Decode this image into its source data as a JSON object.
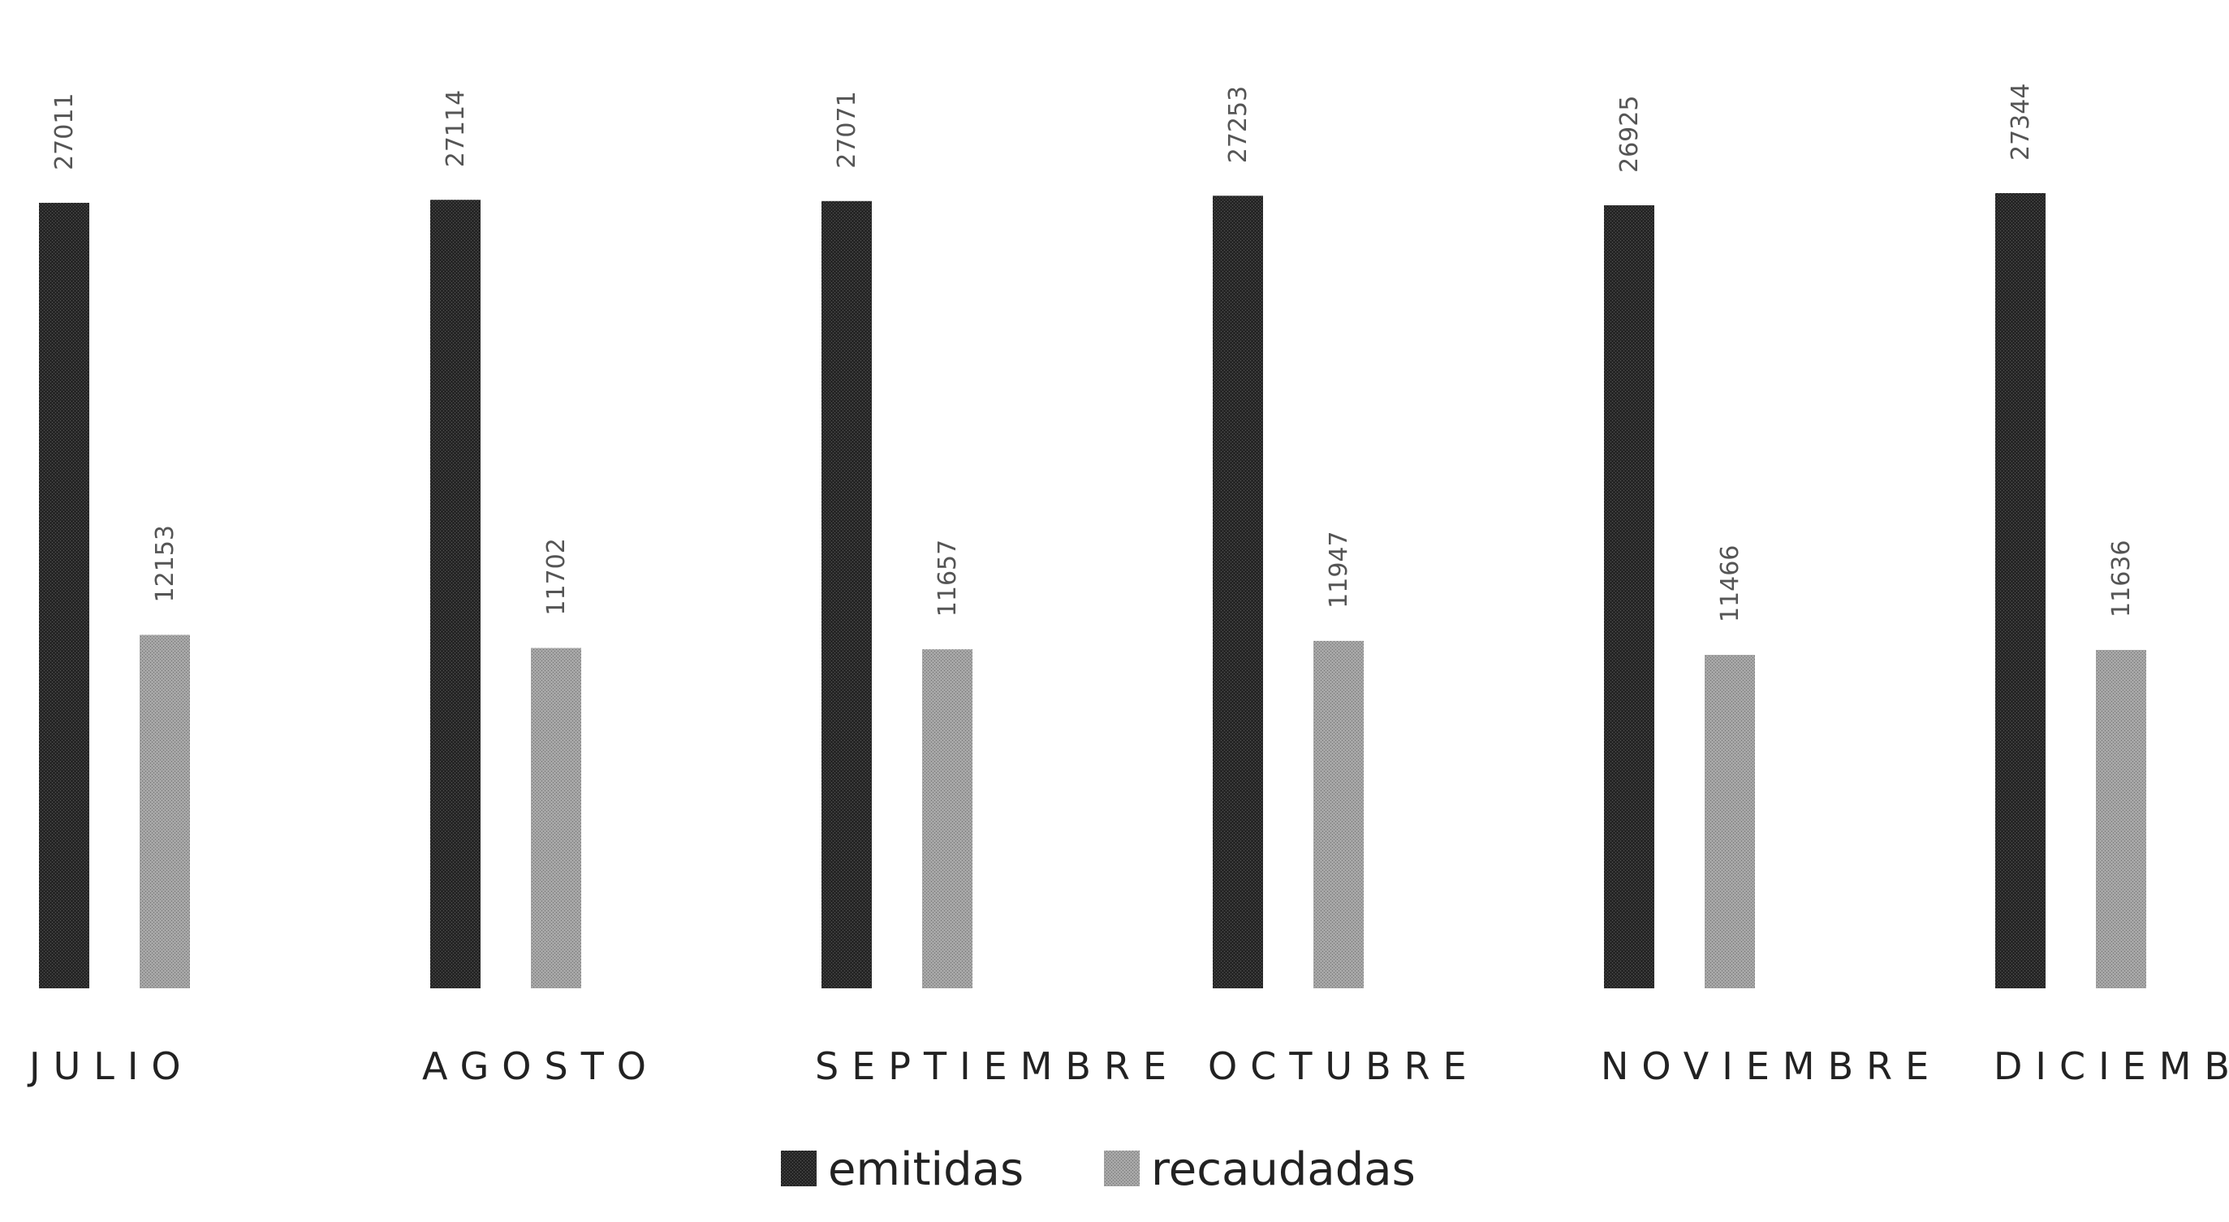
{
  "chart_data": {
    "type": "bar",
    "categories": [
      "JULIO",
      "AGOSTO",
      "SEPTIEMBRE",
      "OCTUBRE",
      "NOVIEMBRE",
      "DICIEMBRE"
    ],
    "series": [
      {
        "name": "emitidas",
        "values": [
          27011,
          27114,
          27071,
          27253,
          26925,
          27344
        ]
      },
      {
        "name": "recaudadas",
        "values": [
          12153,
          11702,
          11657,
          11947,
          11466,
          11636
        ]
      }
    ],
    "data_labels": {
      "emitidas": [
        "27011",
        "27114",
        "27071",
        "27253",
        "26925",
        "27344"
      ],
      "recaudadas": [
        "12153",
        "11702",
        "11657",
        "11947",
        "11466",
        "11636"
      ]
    },
    "ylim": [
      0,
      27344
    ],
    "grid": false,
    "legend_position": "bottom",
    "colors": {
      "emitidas": "#262626",
      "recaudadas": "#a6a6a6"
    }
  }
}
